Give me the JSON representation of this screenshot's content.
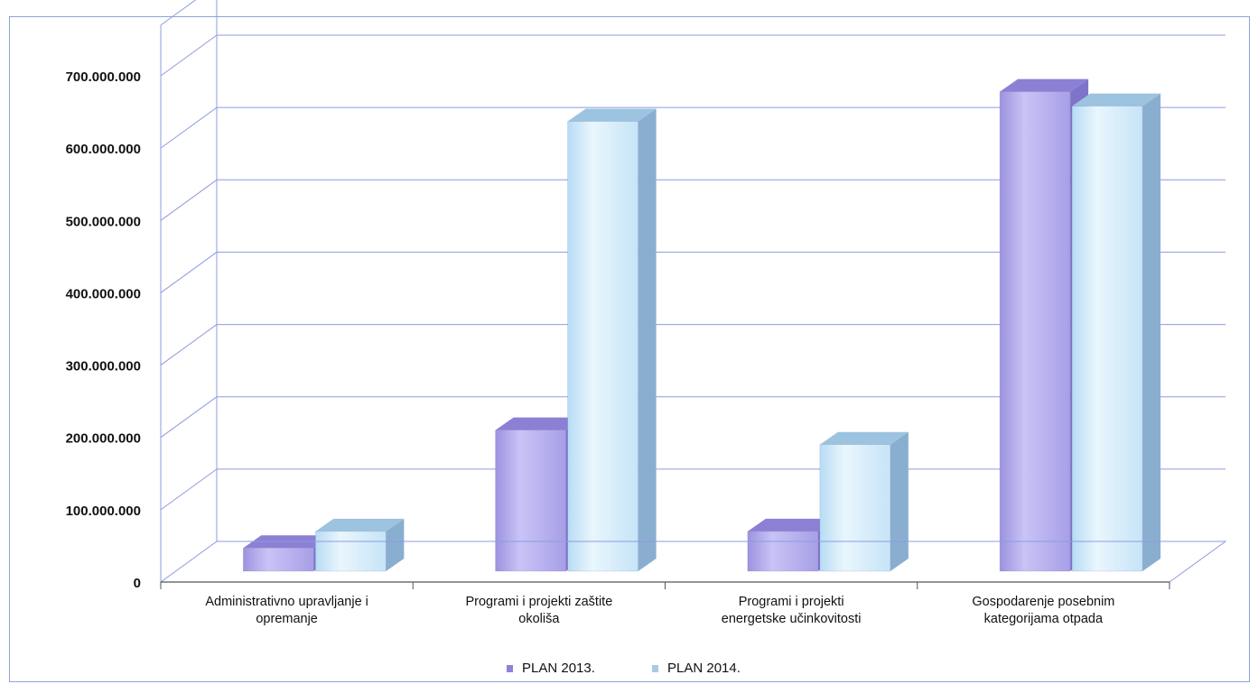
{
  "chart_data": {
    "type": "bar",
    "categories": [
      [
        "Administrativno upravljanje i",
        "opremanje"
      ],
      [
        "Programi i projekti zaštite",
        "okoliša"
      ],
      [
        "Programi i projekti",
        "energetske učinkovitosti"
      ],
      [
        "Gospodarenje posebnim",
        "kategorijama otpada"
      ]
    ],
    "series": [
      {
        "name": "PLAN 2013.",
        "values": [
          62000000,
          225000000,
          85000000,
          693000000
        ],
        "color": "#b9b3ee"
      },
      {
        "name": "PLAN 2014.",
        "values": [
          85000000,
          652000000,
          205000000,
          673000000
        ],
        "color": "#d8eefb"
      }
    ],
    "y_ticks": [
      "0",
      "100.000.000",
      "200.000.000",
      "300.000.000",
      "400.000.000",
      "500.000.000",
      "600.000.000",
      "700.000.000"
    ],
    "ylim": [
      0,
      700000000
    ],
    "grid": true,
    "legend_position": "bottom",
    "title": "",
    "xlabel": "",
    "ylabel": ""
  }
}
